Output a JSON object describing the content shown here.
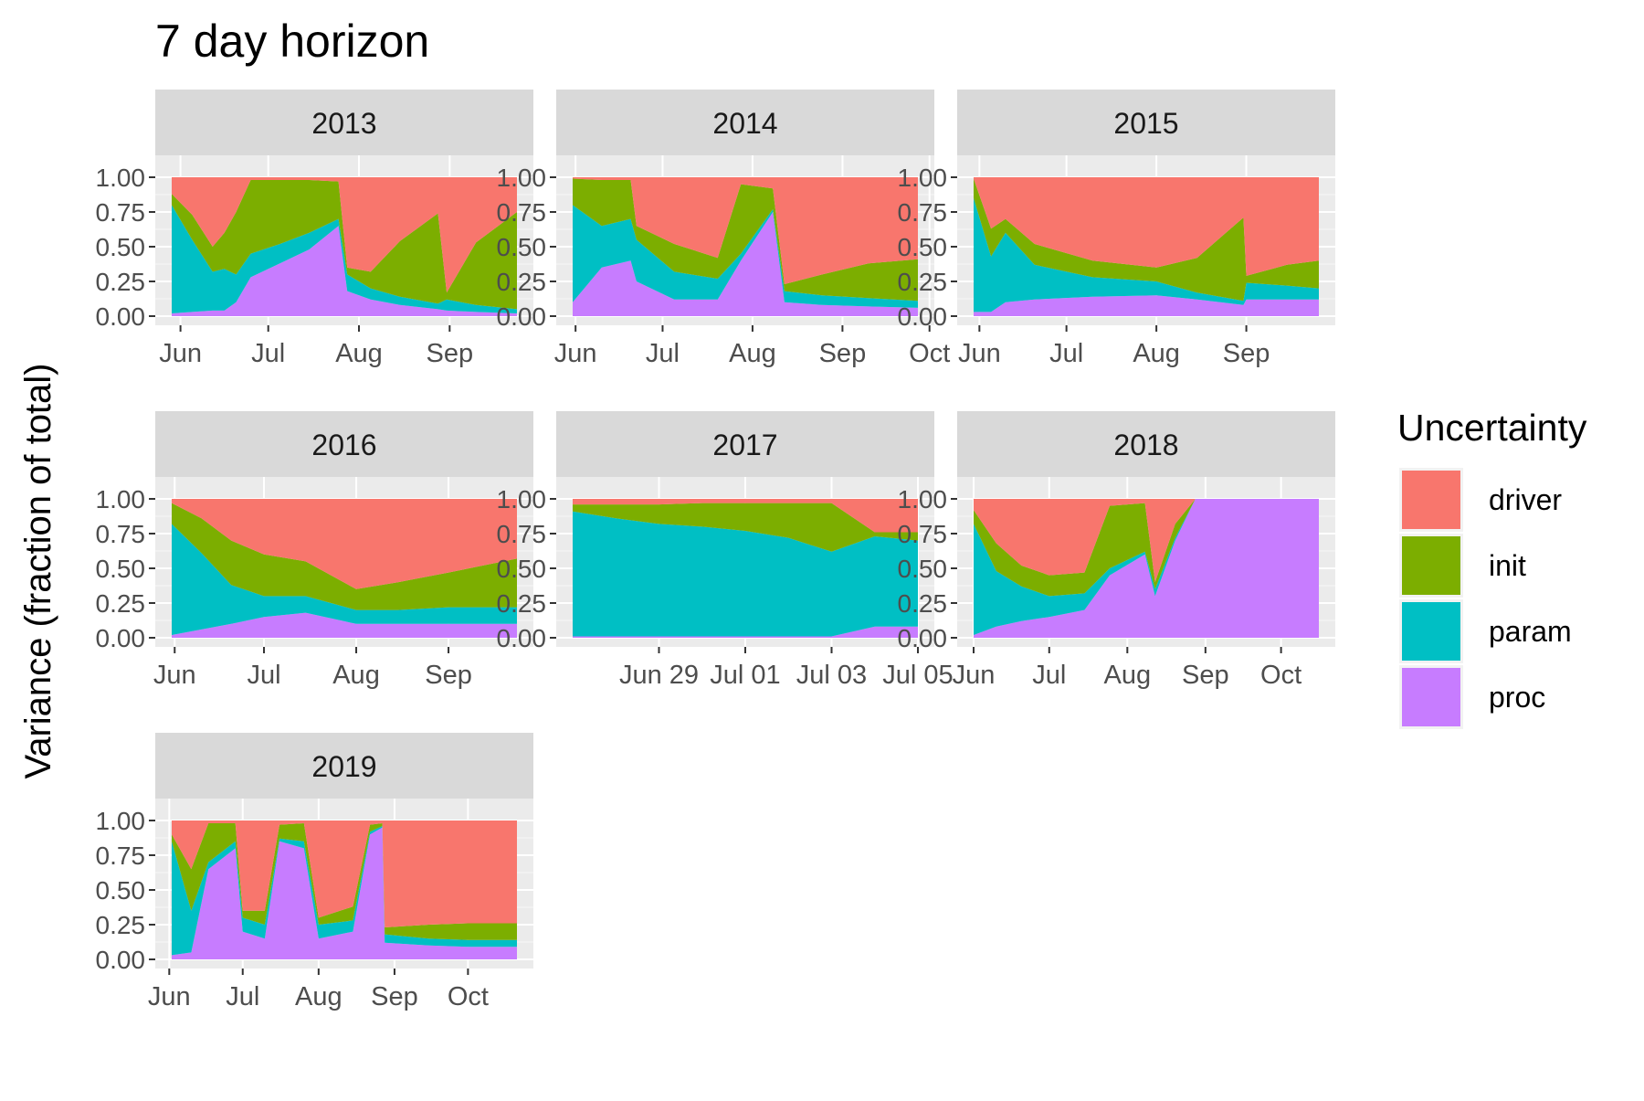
{
  "title": "7 day horizon",
  "ylabel": "Variance (fraction of total)",
  "legend": {
    "title": "Uncertainty",
    "position": "right",
    "items": [
      {
        "label": "driver",
        "color": "#F8766D"
      },
      {
        "label": "init",
        "color": "#7CAE00"
      },
      {
        "label": "param",
        "color": "#00BFC4"
      },
      {
        "label": "proc",
        "color": "#C77CFF"
      }
    ]
  },
  "chart_data": {
    "type": "area",
    "stacking": "fill",
    "series_order_bottom_to_top": [
      "proc",
      "param",
      "init",
      "driver"
    ],
    "ylim": [
      0,
      1
    ],
    "yticks": [
      "0.00",
      "0.25",
      "0.50",
      "0.75",
      "1.00"
    ],
    "grid": true,
    "panels": [
      {
        "label": "2013",
        "xlim": [
          "2013-05-29",
          "2013-09-24"
        ],
        "xticks": [
          {
            "date": "2013-06-01",
            "label": "Jun"
          },
          {
            "date": "2013-07-01",
            "label": "Jul"
          },
          {
            "date": "2013-08-01",
            "label": "Aug"
          },
          {
            "date": "2013-09-01",
            "label": "Sep"
          }
        ],
        "data": [
          {
            "date": "2013-05-29",
            "proc": 0.02,
            "param": 0.78,
            "init": 0.08,
            "driver": 0.12
          },
          {
            "date": "2013-06-05",
            "proc": 0.03,
            "param": 0.52,
            "init": 0.18,
            "driver": 0.27
          },
          {
            "date": "2013-06-12",
            "proc": 0.04,
            "param": 0.28,
            "init": 0.18,
            "driver": 0.5
          },
          {
            "date": "2013-06-16",
            "proc": 0.04,
            "param": 0.3,
            "init": 0.26,
            "driver": 0.4
          },
          {
            "date": "2013-06-20",
            "proc": 0.1,
            "param": 0.2,
            "init": 0.45,
            "driver": 0.25
          },
          {
            "date": "2013-06-25",
            "proc": 0.28,
            "param": 0.17,
            "init": 0.53,
            "driver": 0.02
          },
          {
            "date": "2013-07-05",
            "proc": 0.38,
            "param": 0.14,
            "init": 0.46,
            "driver": 0.02
          },
          {
            "date": "2013-07-15",
            "proc": 0.48,
            "param": 0.12,
            "init": 0.38,
            "driver": 0.02
          },
          {
            "date": "2013-07-25",
            "proc": 0.65,
            "param": 0.05,
            "init": 0.27,
            "driver": 0.03
          },
          {
            "date": "2013-07-28",
            "proc": 0.18,
            "param": 0.12,
            "init": 0.05,
            "driver": 0.65
          },
          {
            "date": "2013-08-05",
            "proc": 0.12,
            "param": 0.08,
            "init": 0.12,
            "driver": 0.68
          },
          {
            "date": "2013-08-15",
            "proc": 0.08,
            "param": 0.06,
            "init": 0.4,
            "driver": 0.46
          },
          {
            "date": "2013-08-28",
            "proc": 0.05,
            "param": 0.04,
            "init": 0.65,
            "driver": 0.26
          },
          {
            "date": "2013-08-31",
            "proc": 0.04,
            "param": 0.08,
            "init": 0.05,
            "driver": 0.83
          },
          {
            "date": "2013-09-10",
            "proc": 0.03,
            "param": 0.05,
            "init": 0.45,
            "driver": 0.47
          },
          {
            "date": "2013-09-24",
            "proc": 0.02,
            "param": 0.03,
            "init": 0.7,
            "driver": 0.25
          }
        ]
      },
      {
        "label": "2014",
        "xlim": [
          "2014-05-31",
          "2014-09-27"
        ],
        "xticks": [
          {
            "date": "2014-06-01",
            "label": "Jun"
          },
          {
            "date": "2014-07-01",
            "label": "Jul"
          },
          {
            "date": "2014-08-01",
            "label": "Aug"
          },
          {
            "date": "2014-09-01",
            "label": "Sep"
          },
          {
            "date": "2014-10-01",
            "label": "Oct"
          }
        ],
        "data": [
          {
            "date": "2014-05-31",
            "proc": 0.1,
            "param": 0.7,
            "init": 0.19,
            "driver": 0.01
          },
          {
            "date": "2014-06-10",
            "proc": 0.35,
            "param": 0.3,
            "init": 0.33,
            "driver": 0.02
          },
          {
            "date": "2014-06-20",
            "proc": 0.4,
            "param": 0.3,
            "init": 0.28,
            "driver": 0.02
          },
          {
            "date": "2014-06-22",
            "proc": 0.25,
            "param": 0.3,
            "init": 0.1,
            "driver": 0.35
          },
          {
            "date": "2014-07-05",
            "proc": 0.12,
            "param": 0.2,
            "init": 0.2,
            "driver": 0.48
          },
          {
            "date": "2014-07-20",
            "proc": 0.12,
            "param": 0.15,
            "init": 0.15,
            "driver": 0.58
          },
          {
            "date": "2014-07-28",
            "proc": 0.4,
            "param": 0.05,
            "init": 0.5,
            "driver": 0.05
          },
          {
            "date": "2014-08-08",
            "proc": 0.75,
            "param": 0.02,
            "init": 0.15,
            "driver": 0.08
          },
          {
            "date": "2014-08-12",
            "proc": 0.1,
            "param": 0.08,
            "init": 0.05,
            "driver": 0.77
          },
          {
            "date": "2014-08-25",
            "proc": 0.08,
            "param": 0.07,
            "init": 0.15,
            "driver": 0.7
          },
          {
            "date": "2014-09-10",
            "proc": 0.07,
            "param": 0.06,
            "init": 0.25,
            "driver": 0.62
          },
          {
            "date": "2014-09-27",
            "proc": 0.06,
            "param": 0.05,
            "init": 0.3,
            "driver": 0.59
          }
        ]
      },
      {
        "label": "2015",
        "xlim": [
          "2015-05-30",
          "2015-09-26"
        ],
        "xticks": [
          {
            "date": "2015-06-01",
            "label": "Jun"
          },
          {
            "date": "2015-07-01",
            "label": "Jul"
          },
          {
            "date": "2015-08-01",
            "label": "Aug"
          },
          {
            "date": "2015-09-01",
            "label": "Sep"
          }
        ],
        "data": [
          {
            "date": "2015-05-30",
            "proc": 0.03,
            "param": 0.82,
            "init": 0.14,
            "driver": 0.01
          },
          {
            "date": "2015-06-05",
            "proc": 0.03,
            "param": 0.4,
            "init": 0.2,
            "driver": 0.37
          },
          {
            "date": "2015-06-10",
            "proc": 0.1,
            "param": 0.5,
            "init": 0.1,
            "driver": 0.3
          },
          {
            "date": "2015-06-20",
            "proc": 0.12,
            "param": 0.25,
            "init": 0.15,
            "driver": 0.48
          },
          {
            "date": "2015-07-10",
            "proc": 0.14,
            "param": 0.14,
            "init": 0.12,
            "driver": 0.6
          },
          {
            "date": "2015-08-01",
            "proc": 0.15,
            "param": 0.1,
            "init": 0.1,
            "driver": 0.65
          },
          {
            "date": "2015-08-15",
            "proc": 0.12,
            "param": 0.05,
            "init": 0.25,
            "driver": 0.58
          },
          {
            "date": "2015-08-31",
            "proc": 0.08,
            "param": 0.03,
            "init": 0.6,
            "driver": 0.29
          },
          {
            "date": "2015-09-01",
            "proc": 0.12,
            "param": 0.12,
            "init": 0.05,
            "driver": 0.71
          },
          {
            "date": "2015-09-15",
            "proc": 0.12,
            "param": 0.1,
            "init": 0.15,
            "driver": 0.63
          },
          {
            "date": "2015-09-26",
            "proc": 0.12,
            "param": 0.08,
            "init": 0.2,
            "driver": 0.6
          }
        ]
      },
      {
        "label": "2016",
        "xlim": [
          "2016-05-31",
          "2016-09-24"
        ],
        "xticks": [
          {
            "date": "2016-06-01",
            "label": "Jun"
          },
          {
            "date": "2016-07-01",
            "label": "Jul"
          },
          {
            "date": "2016-08-01",
            "label": "Aug"
          },
          {
            "date": "2016-09-01",
            "label": "Sep"
          }
        ],
        "data": [
          {
            "date": "2016-05-31",
            "proc": 0.02,
            "param": 0.8,
            "init": 0.15,
            "driver": 0.03
          },
          {
            "date": "2016-06-10",
            "proc": 0.06,
            "param": 0.55,
            "init": 0.25,
            "driver": 0.14
          },
          {
            "date": "2016-06-20",
            "proc": 0.1,
            "param": 0.28,
            "init": 0.32,
            "driver": 0.3
          },
          {
            "date": "2016-07-01",
            "proc": 0.15,
            "param": 0.15,
            "init": 0.3,
            "driver": 0.4
          },
          {
            "date": "2016-07-15",
            "proc": 0.18,
            "param": 0.12,
            "init": 0.25,
            "driver": 0.45
          },
          {
            "date": "2016-08-01",
            "proc": 0.1,
            "param": 0.1,
            "init": 0.15,
            "driver": 0.65
          },
          {
            "date": "2016-08-15",
            "proc": 0.1,
            "param": 0.1,
            "init": 0.2,
            "driver": 0.6
          },
          {
            "date": "2016-09-01",
            "proc": 0.1,
            "param": 0.12,
            "init": 0.25,
            "driver": 0.53
          },
          {
            "date": "2016-09-24",
            "proc": 0.1,
            "param": 0.12,
            "init": 0.35,
            "driver": 0.43
          }
        ]
      },
      {
        "label": "2017",
        "xlim": [
          "2017-06-27",
          "2017-07-05"
        ],
        "xticks": [
          {
            "date": "2017-06-29",
            "label": "Jun 29"
          },
          {
            "date": "2017-07-01",
            "label": "Jul 01"
          },
          {
            "date": "2017-07-03",
            "label": "Jul 03"
          },
          {
            "date": "2017-07-05",
            "label": "Jul 05"
          }
        ],
        "data": [
          {
            "date": "2017-06-27",
            "proc": 0.01,
            "param": 0.9,
            "init": 0.05,
            "driver": 0.04
          },
          {
            "date": "2017-06-28",
            "proc": 0.01,
            "param": 0.85,
            "init": 0.1,
            "driver": 0.04
          },
          {
            "date": "2017-06-29",
            "proc": 0.01,
            "param": 0.81,
            "init": 0.14,
            "driver": 0.04
          },
          {
            "date": "2017-06-30",
            "proc": 0.01,
            "param": 0.79,
            "init": 0.17,
            "driver": 0.03
          },
          {
            "date": "2017-07-01",
            "proc": 0.01,
            "param": 0.76,
            "init": 0.2,
            "driver": 0.03
          },
          {
            "date": "2017-07-02",
            "proc": 0.01,
            "param": 0.71,
            "init": 0.25,
            "driver": 0.03
          },
          {
            "date": "2017-07-03",
            "proc": 0.01,
            "param": 0.61,
            "init": 0.35,
            "driver": 0.03
          },
          {
            "date": "2017-07-04",
            "proc": 0.08,
            "param": 0.65,
            "init": 0.03,
            "driver": 0.24
          },
          {
            "date": "2017-07-05",
            "proc": 0.08,
            "param": 0.62,
            "init": 0.06,
            "driver": 0.24
          }
        ]
      },
      {
        "label": "2018",
        "xlim": [
          "2018-06-01",
          "2018-10-16"
        ],
        "xticks": [
          {
            "date": "2018-06-01",
            "label": "Jun"
          },
          {
            "date": "2018-07-01",
            "label": "Jul"
          },
          {
            "date": "2018-08-01",
            "label": "Aug"
          },
          {
            "date": "2018-09-01",
            "label": "Sep"
          },
          {
            "date": "2018-10-01",
            "label": "Oct"
          }
        ],
        "data": [
          {
            "date": "2018-06-01",
            "proc": 0.02,
            "param": 0.8,
            "init": 0.1,
            "driver": 0.08
          },
          {
            "date": "2018-06-10",
            "proc": 0.08,
            "param": 0.4,
            "init": 0.2,
            "driver": 0.32
          },
          {
            "date": "2018-06-20",
            "proc": 0.12,
            "param": 0.25,
            "init": 0.15,
            "driver": 0.48
          },
          {
            "date": "2018-07-01",
            "proc": 0.15,
            "param": 0.15,
            "init": 0.15,
            "driver": 0.55
          },
          {
            "date": "2018-07-15",
            "proc": 0.2,
            "param": 0.12,
            "init": 0.15,
            "driver": 0.53
          },
          {
            "date": "2018-07-25",
            "proc": 0.45,
            "param": 0.05,
            "init": 0.45,
            "driver": 0.05
          },
          {
            "date": "2018-08-08",
            "proc": 0.6,
            "param": 0.02,
            "init": 0.35,
            "driver": 0.03
          },
          {
            "date": "2018-08-12",
            "proc": 0.3,
            "param": 0.05,
            "init": 0.05,
            "driver": 0.6
          },
          {
            "date": "2018-08-20",
            "proc": 0.7,
            "param": 0.02,
            "init": 0.1,
            "driver": 0.18
          },
          {
            "date": "2018-08-28",
            "proc": 1.0,
            "param": 0.0,
            "init": 0.0,
            "driver": 0.0
          },
          {
            "date": "2018-10-16",
            "proc": 1.0,
            "param": 0.0,
            "init": 0.0,
            "driver": 0.0
          }
        ]
      },
      {
        "label": "2019",
        "xlim": [
          "2019-06-02",
          "2019-10-21"
        ],
        "xticks": [
          {
            "date": "2019-06-01",
            "label": "Jun"
          },
          {
            "date": "2019-07-01",
            "label": "Jul"
          },
          {
            "date": "2019-08-01",
            "label": "Aug"
          },
          {
            "date": "2019-09-01",
            "label": "Sep"
          },
          {
            "date": "2019-10-01",
            "label": "Oct"
          }
        ],
        "data": [
          {
            "date": "2019-06-02",
            "proc": 0.03,
            "param": 0.82,
            "init": 0.05,
            "driver": 0.1
          },
          {
            "date": "2019-06-10",
            "proc": 0.05,
            "param": 0.3,
            "init": 0.3,
            "driver": 0.35
          },
          {
            "date": "2019-06-17",
            "proc": 0.65,
            "param": 0.05,
            "init": 0.28,
            "driver": 0.02
          },
          {
            "date": "2019-06-28",
            "proc": 0.8,
            "param": 0.05,
            "init": 0.13,
            "driver": 0.02
          },
          {
            "date": "2019-07-01",
            "proc": 0.2,
            "param": 0.1,
            "init": 0.05,
            "driver": 0.65
          },
          {
            "date": "2019-07-10",
            "proc": 0.15,
            "param": 0.1,
            "init": 0.1,
            "driver": 0.65
          },
          {
            "date": "2019-07-16",
            "proc": 0.85,
            "param": 0.02,
            "init": 0.1,
            "driver": 0.03
          },
          {
            "date": "2019-07-26",
            "proc": 0.8,
            "param": 0.05,
            "init": 0.13,
            "driver": 0.02
          },
          {
            "date": "2019-08-01",
            "proc": 0.15,
            "param": 0.1,
            "init": 0.05,
            "driver": 0.7
          },
          {
            "date": "2019-08-15",
            "proc": 0.2,
            "param": 0.08,
            "init": 0.1,
            "driver": 0.62
          },
          {
            "date": "2019-08-22",
            "proc": 0.9,
            "param": 0.02,
            "init": 0.05,
            "driver": 0.03
          },
          {
            "date": "2019-08-27",
            "proc": 0.95,
            "param": 0.01,
            "init": 0.02,
            "driver": 0.02
          },
          {
            "date": "2019-08-28",
            "proc": 0.12,
            "param": 0.06,
            "init": 0.05,
            "driver": 0.77
          },
          {
            "date": "2019-09-15",
            "proc": 0.1,
            "param": 0.05,
            "init": 0.1,
            "driver": 0.75
          },
          {
            "date": "2019-10-01",
            "proc": 0.09,
            "param": 0.05,
            "init": 0.12,
            "driver": 0.74
          },
          {
            "date": "2019-10-21",
            "proc": 0.09,
            "param": 0.05,
            "init": 0.12,
            "driver": 0.74
          }
        ]
      }
    ]
  }
}
